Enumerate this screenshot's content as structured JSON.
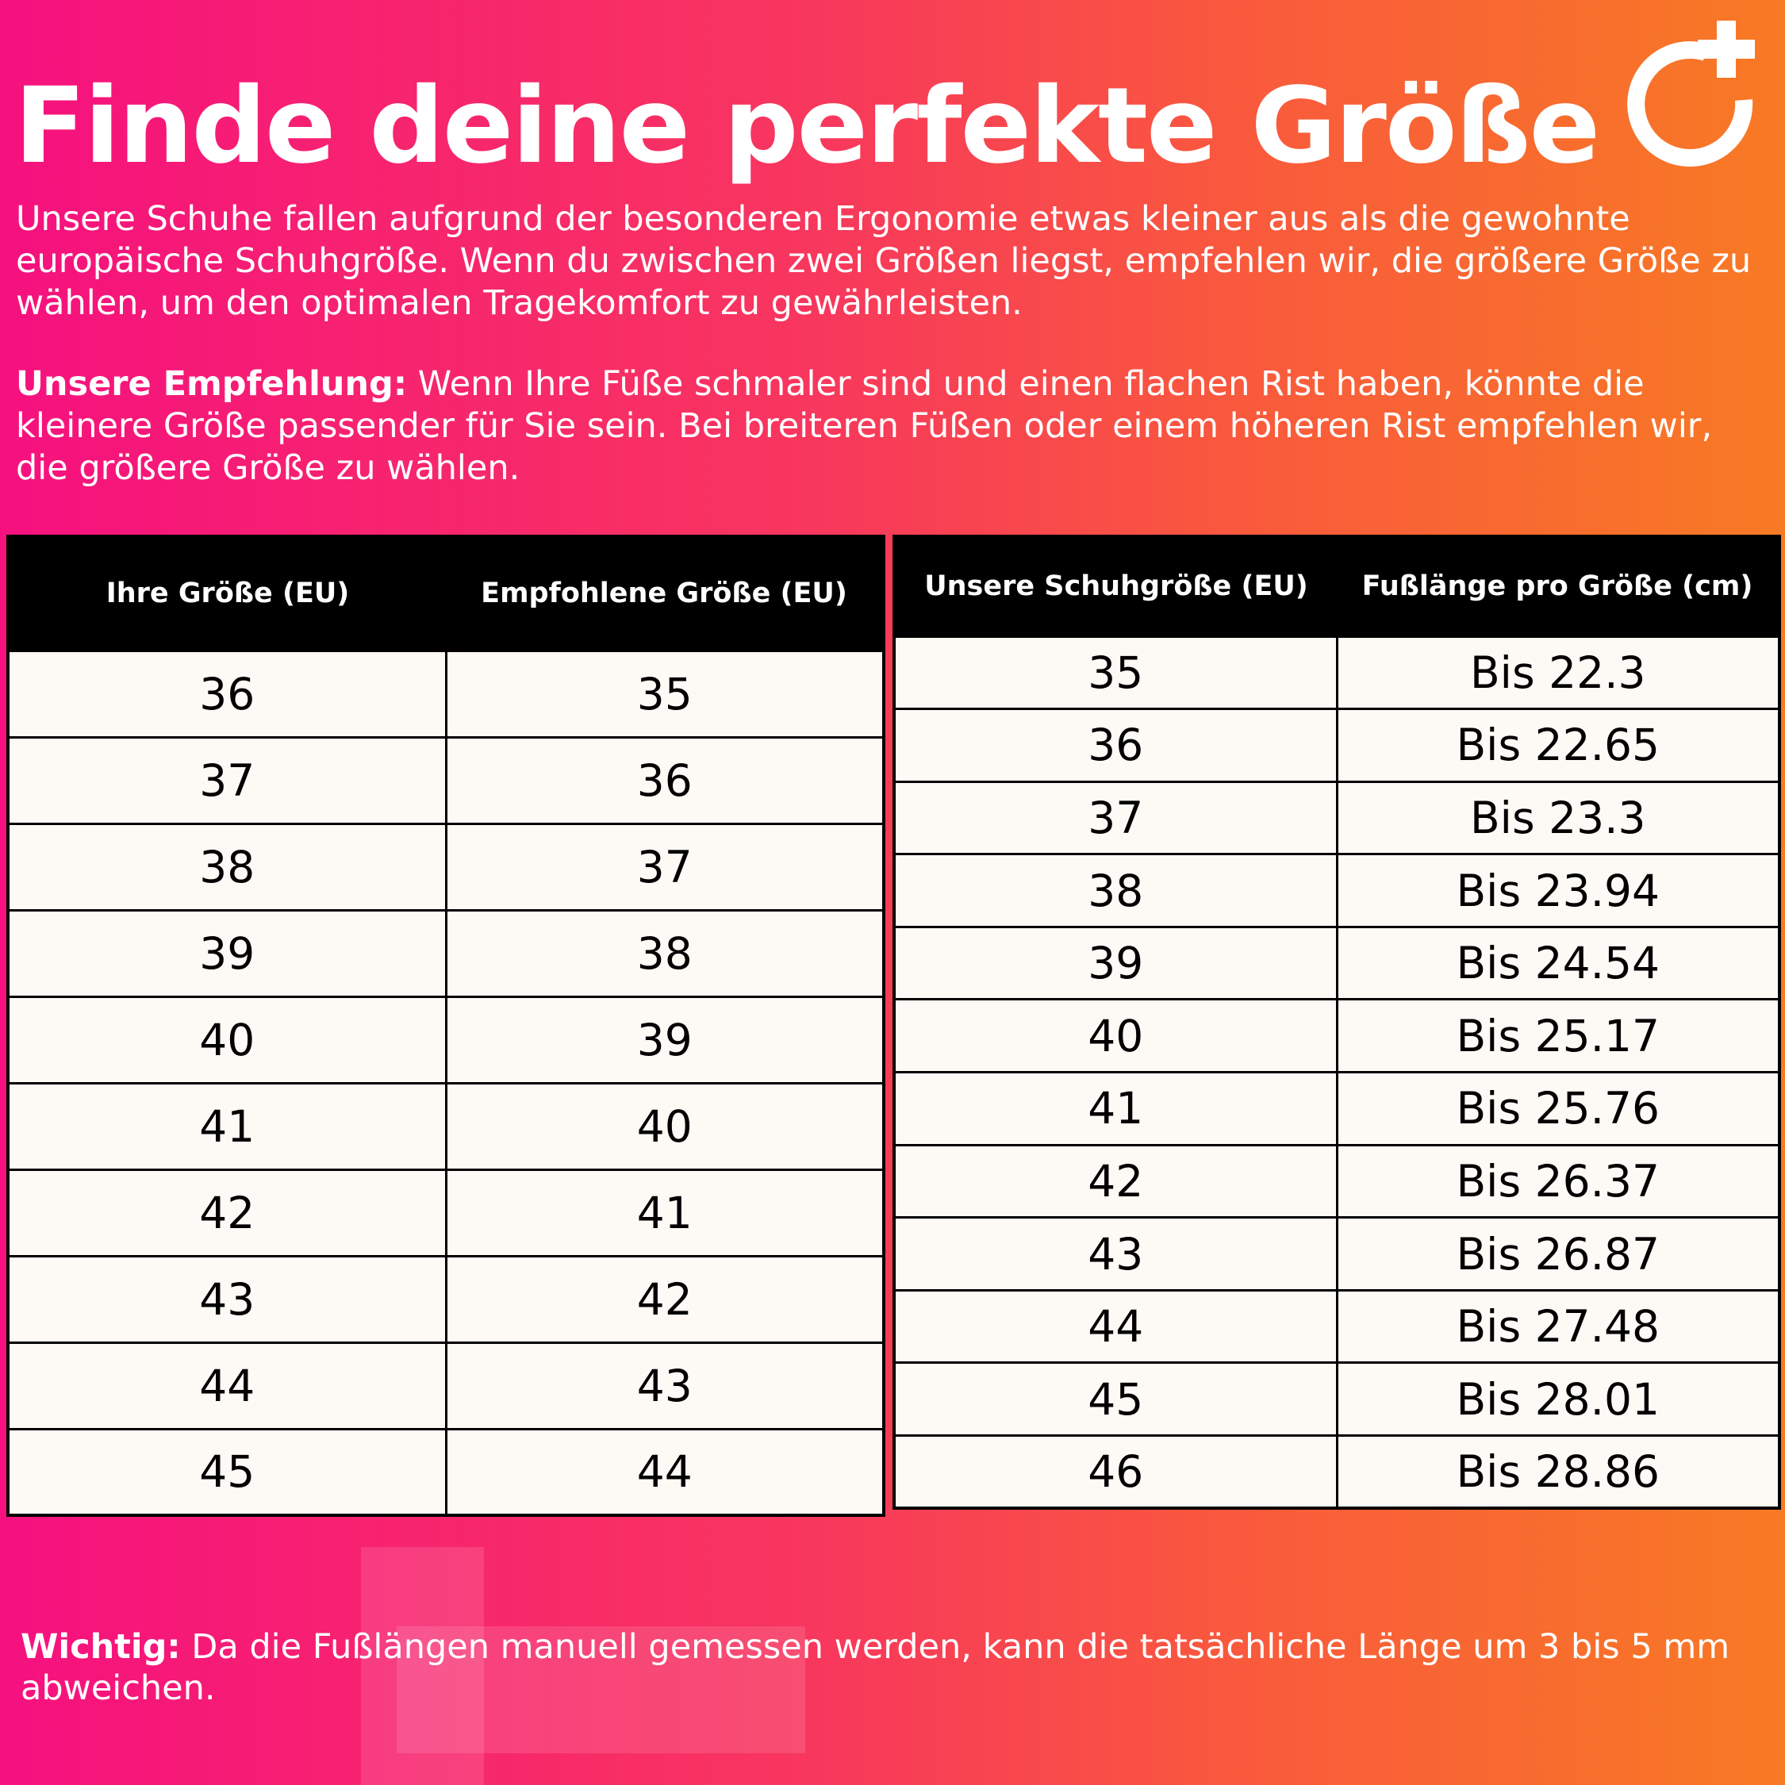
{
  "title": "Finde deine perfekte Größe",
  "intro": "Unsere Schuhe fallen aufgrund der besonderen Ergonomie etwas kleiner aus als die gewohnte europäische Schuhgröße. Wenn du zwischen zwei Größen liegst, empfehlen wir, die größere Größe zu wählen, um den optimalen Tragekomfort zu gewährleisten.",
  "recommendation": {
    "label": "Unsere Empfehlung:",
    "text": " Wenn Ihre Füße schmaler sind und einen flachen Rist haben, könnte die kleinere Größe passender für Sie sein. Bei breiteren Füßen oder einem höheren Rist empfehlen wir, die größere Größe zu wählen."
  },
  "table_left": {
    "headers": [
      "Ihre Größe (EU)",
      "Empfohlene Größe (EU)"
    ],
    "rows": [
      [
        "36",
        "35"
      ],
      [
        "37",
        "36"
      ],
      [
        "38",
        "37"
      ],
      [
        "39",
        "38"
      ],
      [
        "40",
        "39"
      ],
      [
        "41",
        "40"
      ],
      [
        "42",
        "41"
      ],
      [
        "43",
        "42"
      ],
      [
        "44",
        "43"
      ],
      [
        "45",
        "44"
      ]
    ]
  },
  "table_right": {
    "headers": [
      "Unsere Schuhgröße (EU)",
      "Fußlänge pro Größe (cm)"
    ],
    "rows": [
      [
        "35",
        "Bis 22.3"
      ],
      [
        "36",
        "Bis 22.65"
      ],
      [
        "37",
        "Bis 23.3"
      ],
      [
        "38",
        "Bis 23.94"
      ],
      [
        "39",
        "Bis 24.54"
      ],
      [
        "40",
        "Bis 25.17"
      ],
      [
        "41",
        "Bis 25.76"
      ],
      [
        "42",
        "Bis 26.37"
      ],
      [
        "43",
        "Bis 26.87"
      ],
      [
        "44",
        "Bis 27.48"
      ],
      [
        "45",
        "Bis 28.01"
      ],
      [
        "46",
        "Bis 28.86"
      ]
    ]
  },
  "note": {
    "label": "Wichtig:",
    "text": " Da die Fußlängen manuell gemessen werden, kann die tatsächliche Länge um 3 bis 5 mm abweichen."
  },
  "colors": {
    "gradient_start": "#f6117f",
    "gradient_end": "#f87a24",
    "header_bg": "#000000",
    "cell_bg": "#fdf9f5"
  },
  "logo_icon": "circle-plus-logo"
}
